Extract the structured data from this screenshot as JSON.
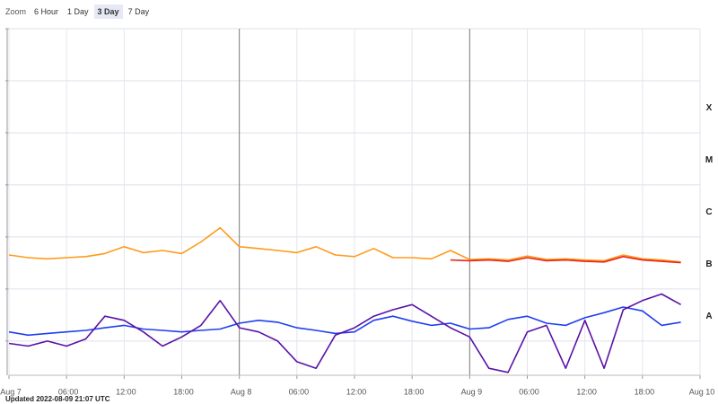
{
  "zoom": {
    "label": "Zoom",
    "buttons": [
      "6 Hour",
      "1 Day",
      "3 Day",
      "7 Day"
    ],
    "selected": 2
  },
  "footer": "Updated 2022-08-09 21:07 UTC",
  "chart_data": {
    "type": "line",
    "log_scale": true,
    "grid": true,
    "x": [
      0,
      2,
      4,
      6,
      8,
      10,
      12,
      14,
      16,
      18,
      20,
      22,
      24,
      26,
      28,
      30,
      32,
      34,
      36,
      38,
      40,
      42,
      44,
      46,
      48,
      50,
      52,
      54,
      56,
      58,
      60,
      62,
      64,
      66,
      68,
      70
    ],
    "xlim": [
      0,
      72
    ],
    "xticks": [
      {
        "value": 0,
        "label": "Aug 7"
      },
      {
        "value": 6,
        "label": "06:00"
      },
      {
        "value": 12,
        "label": "12:00"
      },
      {
        "value": 18,
        "label": "18:00"
      },
      {
        "value": 24,
        "label": "Aug 8"
      },
      {
        "value": 30,
        "label": "06:00"
      },
      {
        "value": 36,
        "label": "12:00"
      },
      {
        "value": 42,
        "label": "18:00"
      },
      {
        "value": 48,
        "label": "Aug 9"
      },
      {
        "value": 54,
        "label": "06:00"
      },
      {
        "value": 60,
        "label": "12:00"
      },
      {
        "value": 66,
        "label": "18:00"
      },
      {
        "value": 72,
        "label": "Aug 10"
      }
    ],
    "ylim": [
      2.2e-09,
      0.01
    ],
    "yticks": [
      0.01,
      0.001,
      0.0001,
      1e-05,
      1e-06,
      1e-07,
      1e-08
    ],
    "y2lim": [
      2.2e-09,
      0.01
    ],
    "y2ticks": [
      {
        "value": 0.0003,
        "label": "X"
      },
      {
        "value": 3e-05,
        "label": "M"
      },
      {
        "value": 3e-06,
        "label": "C"
      },
      {
        "value": 3e-07,
        "label": "B"
      },
      {
        "value": 3e-08,
        "label": "A"
      }
    ],
    "series": [
      {
        "color": "#ff9a1a",
        "values": [
          4.5e-07,
          4e-07,
          3.8e-07,
          4e-07,
          4.2e-07,
          4.8e-07,
          6.5e-07,
          5e-07,
          5.5e-07,
          4.8e-07,
          8e-07,
          1.5e-06,
          6.5e-07,
          6e-07,
          5.5e-07,
          5e-07,
          6.5e-07,
          4.5e-07,
          4.2e-07,
          6e-07,
          4e-07,
          4e-07,
          3.8e-07,
          5.5e-07,
          3.7e-07,
          3.8e-07,
          3.6e-07,
          4.3e-07,
          3.7e-07,
          3.8e-07,
          3.6e-07,
          3.5e-07,
          4.5e-07,
          3.8e-07,
          3.6e-07,
          3.3e-07
        ]
      },
      {
        "color": "#e8251a",
        "values": [
          null,
          null,
          null,
          null,
          null,
          null,
          null,
          null,
          null,
          null,
          null,
          null,
          null,
          null,
          null,
          null,
          null,
          null,
          null,
          null,
          null,
          null,
          null,
          3.6e-07,
          3.5e-07,
          3.6e-07,
          3.4e-07,
          4e-07,
          3.5e-07,
          3.6e-07,
          3.4e-07,
          3.3e-07,
          4.2e-07,
          3.6e-07,
          3.4e-07,
          3.2e-07
        ]
      },
      {
        "color": "#1f3ff0",
        "values": [
          1.5e-08,
          1.3e-08,
          1.4e-08,
          1.5e-08,
          1.6e-08,
          1.8e-08,
          2e-08,
          1.7e-08,
          1.6e-08,
          1.5e-08,
          1.6e-08,
          1.7e-08,
          2.2e-08,
          2.5e-08,
          2.3e-08,
          1.8e-08,
          1.6e-08,
          1.4e-08,
          1.5e-08,
          2.5e-08,
          3e-08,
          2.4e-08,
          2e-08,
          2.2e-08,
          1.7e-08,
          1.8e-08,
          2.6e-08,
          3e-08,
          2.2e-08,
          2e-08,
          2.8e-08,
          3.5e-08,
          4.5e-08,
          3.8e-08,
          2e-08,
          2.3e-08
        ]
      },
      {
        "color": "#5a12a6",
        "values": [
          9e-09,
          8e-09,
          1e-08,
          8e-09,
          1.1e-08,
          3e-08,
          2.5e-08,
          1.5e-08,
          8e-09,
          1.2e-08,
          2e-08,
          6e-08,
          1.8e-08,
          1.5e-08,
          1e-08,
          4e-09,
          3e-09,
          1.3e-08,
          1.8e-08,
          3e-08,
          4e-08,
          5e-08,
          3e-08,
          1.8e-08,
          1.2e-08,
          3e-09,
          2.5e-09,
          1.5e-08,
          2e-08,
          3e-09,
          2.5e-08,
          3e-09,
          4e-08,
          6e-08,
          8e-08,
          5e-08
        ]
      }
    ]
  }
}
